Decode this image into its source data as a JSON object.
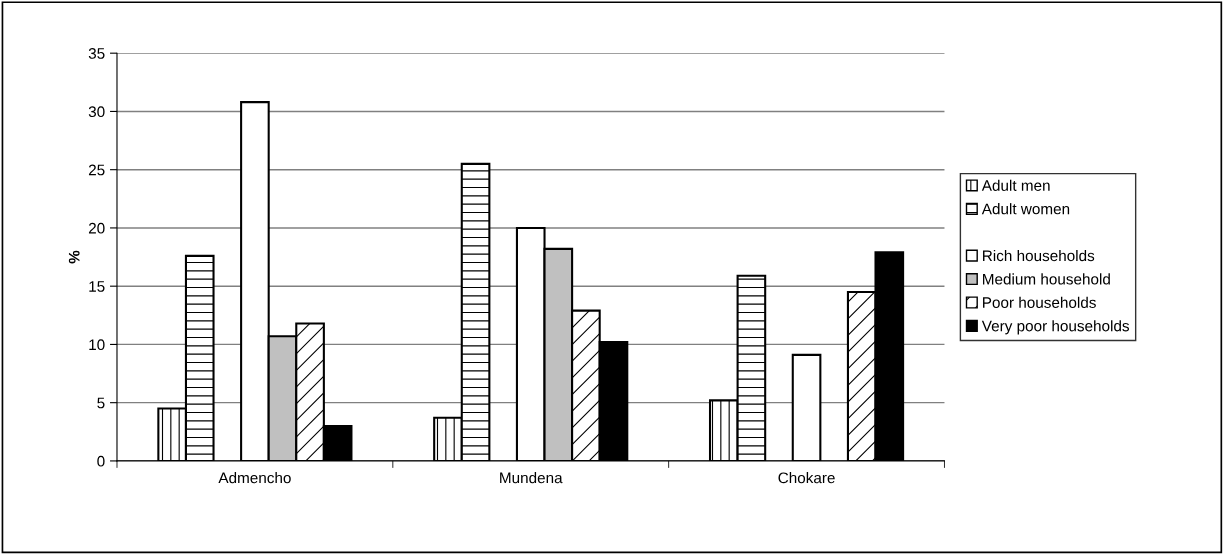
{
  "chart_data": {
    "type": "bar",
    "ylabel": "%",
    "categories": [
      "Admencho",
      "Mundena",
      "Chokare"
    ],
    "series": [
      {
        "name": "Adult men",
        "color": "#ffffff",
        "values": [
          4.5,
          3.7,
          5.2
        ]
      },
      {
        "name": "Adult women",
        "color": "#ffffff",
        "values": [
          17.6,
          25.5,
          15.9
        ]
      },
      {
        "values": [
          null,
          null,
          null
        ]
      },
      {
        "name": "Rich households",
        "color": "#ffffff",
        "values": [
          30.8,
          20.0,
          9.1
        ]
      },
      {
        "name": "Medium household",
        "color": "#c0c0c0",
        "values": [
          10.7,
          18.2,
          null
        ]
      },
      {
        "name": "Poor households",
        "color": "#ffffff",
        "values": [
          11.8,
          12.9,
          14.5
        ]
      },
      {
        "name": "Very poor households",
        "color": "#000000",
        "values": [
          3.0,
          10.2,
          17.9
        ]
      }
    ],
    "ylim": [
      0,
      35
    ],
    "yticks": [
      0,
      5,
      10,
      15,
      20,
      25,
      30,
      35
    ],
    "grid": "y",
    "legend": "right"
  }
}
